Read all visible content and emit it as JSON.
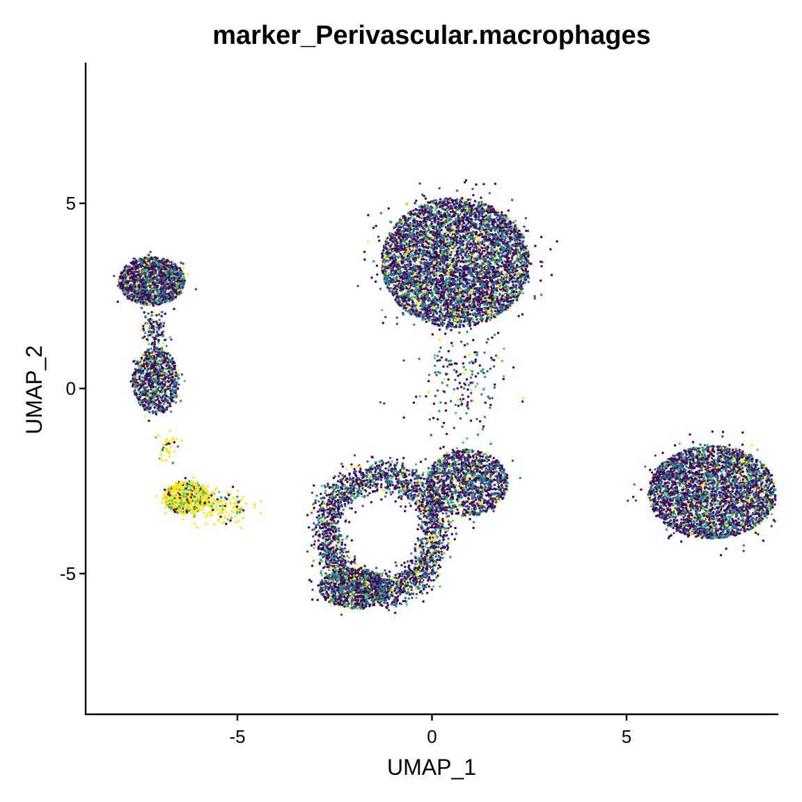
{
  "chart_data": {
    "type": "scatter",
    "title": "marker_Perivascular.macrophages",
    "xlabel": "UMAP_1",
    "ylabel": "UMAP_2",
    "xlim": [
      -8.9,
      8.9
    ],
    "ylim": [
      -8.8,
      8.8
    ],
    "x_ticks": [
      {
        "value": -5,
        "label": "-5"
      },
      {
        "value": 0,
        "label": "0"
      },
      {
        "value": 5,
        "label": "5"
      }
    ],
    "y_ticks": [
      {
        "value": 5,
        "label": "5"
      },
      {
        "value": 0,
        "label": "0"
      },
      {
        "value": -5,
        "label": "-5"
      }
    ],
    "grid": false,
    "legend": "none",
    "color_scale": [
      "#440154",
      "#3b528b",
      "#21918c",
      "#5ec962",
      "#fde725"
    ],
    "clusters": [
      {
        "center": [
          0.6,
          3.4
        ],
        "spread": [
          1.9,
          1.75
        ],
        "count": 5200,
        "palette": "mixed",
        "shape": "disk"
      },
      {
        "center": [
          7.2,
          -2.8
        ],
        "spread": [
          1.65,
          1.25
        ],
        "count": 3400,
        "palette": "mixed",
        "shape": "disk"
      },
      {
        "center": [
          -7.2,
          2.9
        ],
        "spread": [
          0.85,
          0.65
        ],
        "count": 1400,
        "palette": "mixed",
        "shape": "disk"
      },
      {
        "center": [
          -7.1,
          0.2
        ],
        "spread": [
          0.6,
          0.9
        ],
        "count": 900,
        "palette": "mixed",
        "shape": "disk"
      },
      {
        "center": [
          -6.3,
          -2.95
        ],
        "spread": [
          0.6,
          0.45
        ],
        "count": 650,
        "palette": "yellow",
        "shape": "disk"
      },
      {
        "center": [
          -5.4,
          -3.2
        ],
        "spread": [
          0.8,
          0.45
        ],
        "count": 150,
        "palette": "yellow",
        "shape": "gauss"
      },
      {
        "center": [
          0.9,
          -2.55
        ],
        "spread": [
          1.05,
          0.9
        ],
        "count": 1400,
        "palette": "mixed",
        "shape": "disk"
      },
      {
        "center": [
          -1.3,
          -3.9
        ],
        "spread": [
          1.7,
          1.9
        ],
        "count": 2600,
        "palette": "mixed",
        "shape": "ring"
      },
      {
        "center": [
          -2.0,
          -5.4
        ],
        "spread": [
          0.9,
          0.55
        ],
        "count": 900,
        "palette": "mixed",
        "shape": "disk"
      },
      {
        "center": [
          -7.1,
          1.55
        ],
        "spread": [
          0.3,
          0.6
        ],
        "count": 120,
        "palette": "mixed",
        "shape": "gauss"
      },
      {
        "center": [
          0.8,
          0.2
        ],
        "spread": [
          1.2,
          1.4
        ],
        "count": 180,
        "palette": "mixed",
        "shape": "gauss"
      },
      {
        "center": [
          -6.8,
          -1.6
        ],
        "spread": [
          0.3,
          0.4
        ],
        "count": 40,
        "palette": "yellow",
        "shape": "gauss"
      }
    ]
  }
}
